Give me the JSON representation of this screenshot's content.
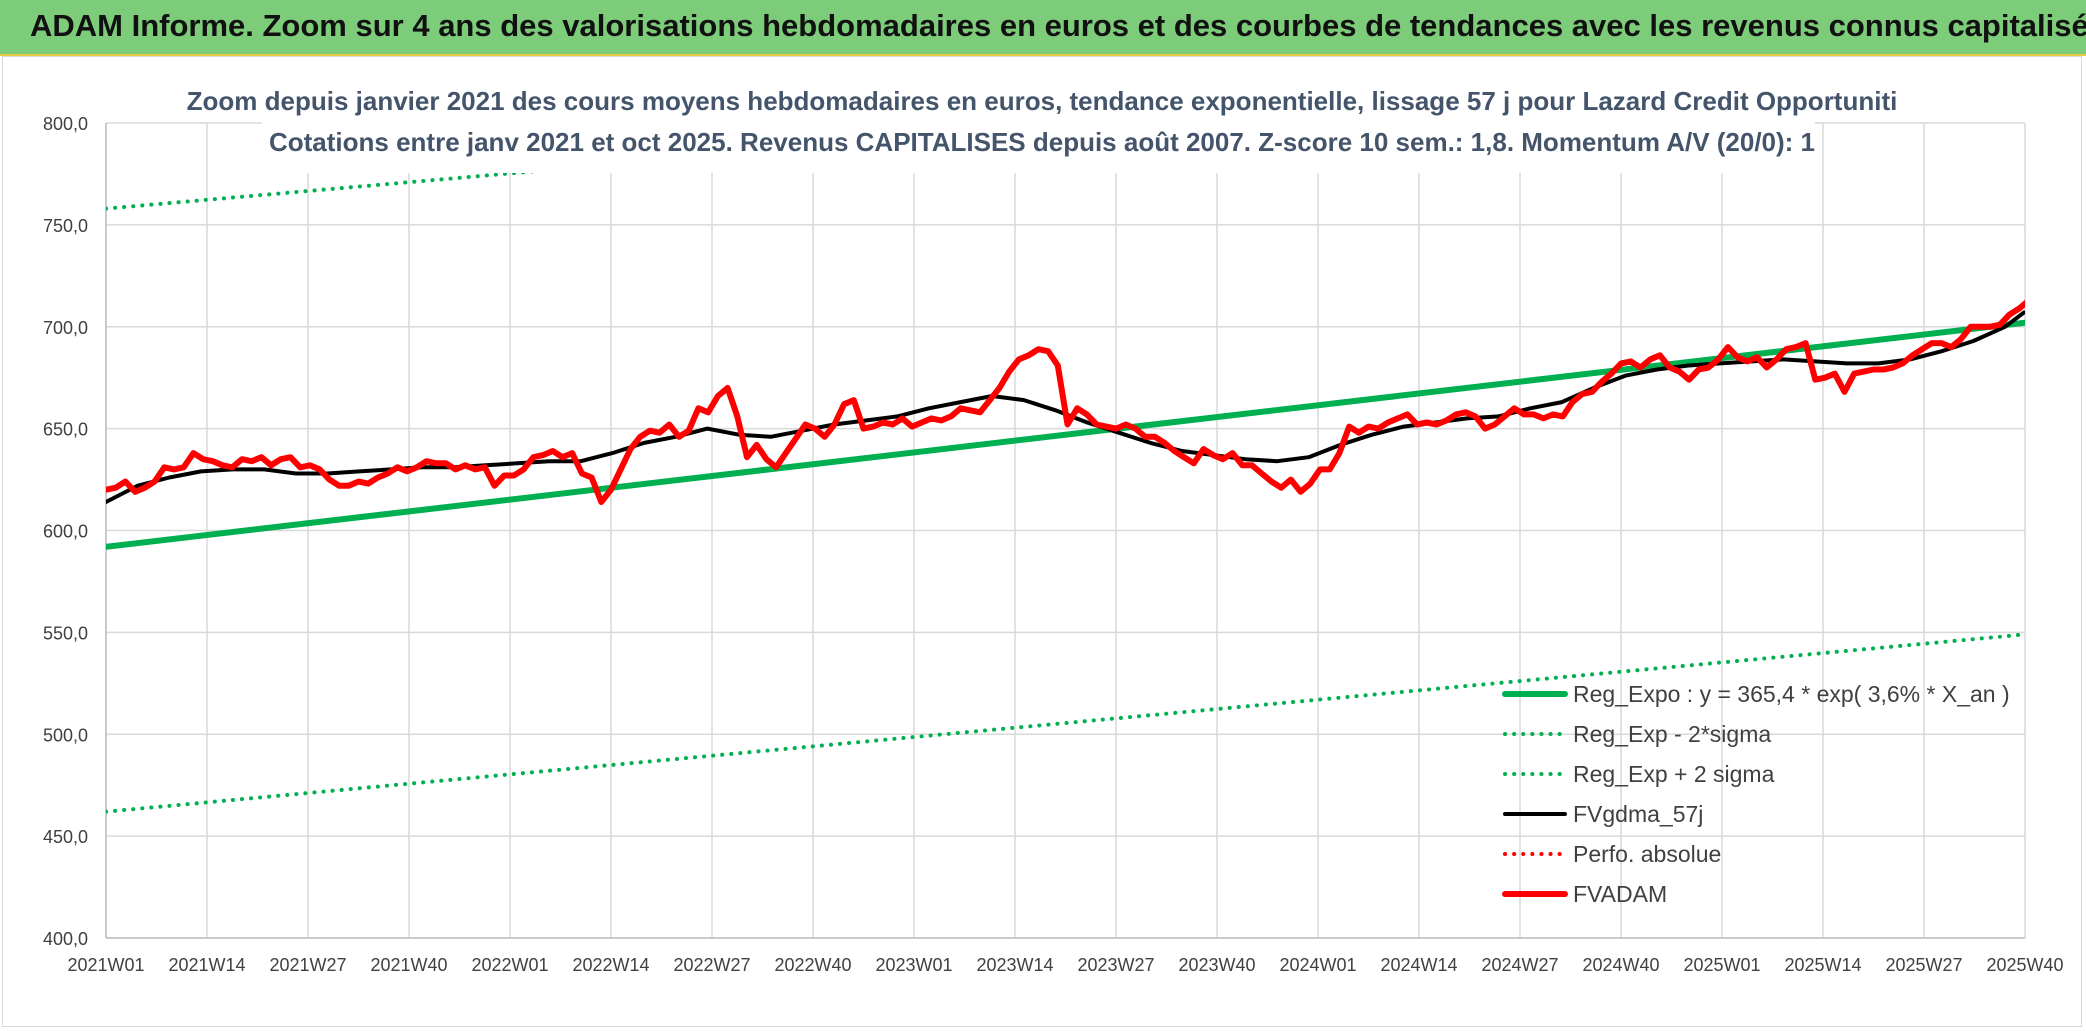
{
  "header": {
    "title": "ADAM Informe. Zoom sur 4 ans des valorisations hebdomadaires en euros et des courbes de tendances avec les revenus connus capitalisés"
  },
  "colors": {
    "banner": "#7dcc7a",
    "trend": "#00b050",
    "smooth": "#000000",
    "price": "#ff0000",
    "grid": "#d9d9d9",
    "axis_text": "#404040",
    "title_text": "#44546a"
  },
  "chart_data": {
    "type": "line",
    "title": "Zoom depuis janvier 2021 des cours moyens hebdomadaires en euros, tendance exponentielle, lissage 57 j pour Lazard Credit Opportuniti",
    "subtitle": "Cotations entre janv 2021 et oct 2025. Revenus CAPITALISES depuis août 2007. Z-score 10 sem.: 1,8. Momentum A/V (20/0): 1",
    "xlabel": "",
    "ylabel": "",
    "ylim": [
      400,
      800
    ],
    "y_ticks": [
      "800,0",
      "750,0",
      "700,0",
      "650,0",
      "600,0",
      "550,0",
      "500,0",
      "450,0",
      "400,0"
    ],
    "x_ticks": [
      "2021W01",
      "2021W14",
      "2021W27",
      "2021W40",
      "2022W01",
      "2022W14",
      "2022W27",
      "2022W40",
      "2023W01",
      "2023W14",
      "2023W27",
      "2023W40",
      "2024W01",
      "2024W14",
      "2024W27",
      "2024W40",
      "2025W01",
      "2025W14",
      "2025W27",
      "2025W40"
    ],
    "grid": true,
    "legend_position": "bottom-right",
    "series": [
      {
        "name": "Reg_Expo : y = 365,4 * exp( 3,6% *  X_an )",
        "style": "solid-thick",
        "color": "#00b050",
        "points": [
          [
            0,
            592
          ],
          [
            247,
            702
          ]
        ]
      },
      {
        "name": "Reg_Exp - 2*sigma",
        "style": "dotted",
        "color": "#00b050",
        "points": [
          [
            0,
            462
          ],
          [
            247,
            549
          ]
        ]
      },
      {
        "name": "Reg_Exp + 2 sigma",
        "style": "dotted",
        "color": "#00b050",
        "points": [
          [
            0,
            758
          ],
          [
            247,
            840
          ]
        ]
      },
      {
        "name": "FVgdma_57j",
        "style": "solid",
        "color": "#000000",
        "points": [
          [
            0,
            614
          ],
          [
            5,
            622
          ],
          [
            10,
            626
          ],
          [
            15,
            629
          ],
          [
            20,
            630
          ],
          [
            25,
            630
          ],
          [
            30,
            628
          ],
          [
            35,
            628
          ],
          [
            40,
            629
          ],
          [
            45,
            630
          ],
          [
            50,
            631
          ],
          [
            55,
            631
          ],
          [
            60,
            632
          ],
          [
            65,
            633
          ],
          [
            70,
            634
          ],
          [
            75,
            634
          ],
          [
            80,
            638
          ],
          [
            85,
            643
          ],
          [
            90,
            646
          ],
          [
            95,
            650
          ],
          [
            100,
            647
          ],
          [
            105,
            646
          ],
          [
            110,
            649
          ],
          [
            115,
            652
          ],
          [
            120,
            654
          ],
          [
            125,
            656
          ],
          [
            130,
            660
          ],
          [
            135,
            663
          ],
          [
            140,
            666
          ],
          [
            145,
            664
          ],
          [
            150,
            659
          ],
          [
            155,
            653
          ],
          [
            160,
            648
          ],
          [
            165,
            643
          ],
          [
            170,
            639
          ],
          [
            175,
            637
          ],
          [
            180,
            635
          ],
          [
            185,
            634
          ],
          [
            190,
            636
          ],
          [
            195,
            642
          ],
          [
            200,
            647
          ],
          [
            205,
            651
          ],
          [
            210,
            653
          ],
          [
            215,
            655
          ],
          [
            220,
            656
          ],
          [
            225,
            660
          ],
          [
            230,
            663
          ],
          [
            235,
            670
          ],
          [
            240,
            676
          ],
          [
            245,
            679
          ],
          [
            250,
            681
          ],
          [
            255,
            682
          ],
          [
            260,
            683
          ],
          [
            265,
            684
          ],
          [
            270,
            683
          ],
          [
            275,
            682
          ],
          [
            280,
            682
          ],
          [
            285,
            684
          ],
          [
            290,
            688
          ],
          [
            295,
            693
          ],
          [
            300,
            700
          ],
          [
            303,
            707
          ]
        ]
      },
      {
        "name": "Perfo. absolue",
        "style": "dotted",
        "color": "#ff0000",
        "points": []
      },
      {
        "name": "FVADAM",
        "style": "solid-thick",
        "color": "#ff0000",
        "points": [
          [
            0,
            620
          ],
          [
            2,
            621
          ],
          [
            4,
            624
          ],
          [
            6,
            619
          ],
          [
            8,
            621
          ],
          [
            10,
            624
          ],
          [
            12,
            631
          ],
          [
            14,
            630
          ],
          [
            16,
            631
          ],
          [
            18,
            638
          ],
          [
            20,
            635
          ],
          [
            22,
            634
          ],
          [
            24,
            632
          ],
          [
            26,
            631
          ],
          [
            28,
            635
          ],
          [
            30,
            634
          ],
          [
            32,
            636
          ],
          [
            34,
            632
          ],
          [
            36,
            635
          ],
          [
            38,
            636
          ],
          [
            40,
            631
          ],
          [
            42,
            632
          ],
          [
            44,
            630
          ],
          [
            46,
            625
          ],
          [
            48,
            622
          ],
          [
            50,
            622
          ],
          [
            52,
            624
          ],
          [
            54,
            623
          ],
          [
            56,
            626
          ],
          [
            58,
            628
          ],
          [
            60,
            631
          ],
          [
            62,
            629
          ],
          [
            64,
            631
          ],
          [
            66,
            634
          ],
          [
            68,
            633
          ],
          [
            70,
            633
          ],
          [
            72,
            630
          ],
          [
            74,
            632
          ],
          [
            76,
            630
          ],
          [
            78,
            631
          ],
          [
            80,
            622
          ],
          [
            82,
            627
          ],
          [
            84,
            627
          ],
          [
            86,
            630
          ],
          [
            88,
            636
          ],
          [
            90,
            637
          ],
          [
            92,
            639
          ],
          [
            94,
            636
          ],
          [
            96,
            638
          ],
          [
            98,
            628
          ],
          [
            100,
            626
          ],
          [
            102,
            614
          ],
          [
            104,
            620
          ],
          [
            106,
            630
          ],
          [
            108,
            640
          ],
          [
            110,
            646
          ],
          [
            112,
            649
          ],
          [
            114,
            648
          ],
          [
            116,
            652
          ],
          [
            118,
            646
          ],
          [
            120,
            649
          ],
          [
            122,
            660
          ],
          [
            124,
            658
          ],
          [
            126,
            666
          ],
          [
            128,
            670
          ],
          [
            130,
            656
          ],
          [
            132,
            636
          ],
          [
            134,
            642
          ],
          [
            136,
            635
          ],
          [
            138,
            631
          ],
          [
            140,
            638
          ],
          [
            142,
            645
          ],
          [
            144,
            652
          ],
          [
            146,
            650
          ],
          [
            148,
            646
          ],
          [
            150,
            652
          ],
          [
            152,
            662
          ],
          [
            154,
            664
          ],
          [
            156,
            650
          ],
          [
            158,
            651
          ],
          [
            160,
            653
          ],
          [
            162,
            652
          ],
          [
            164,
            655
          ],
          [
            166,
            651
          ],
          [
            168,
            653
          ],
          [
            170,
            655
          ],
          [
            172,
            654
          ],
          [
            174,
            656
          ],
          [
            176,
            660
          ],
          [
            178,
            659
          ],
          [
            180,
            658
          ],
          [
            182,
            664
          ],
          [
            184,
            670
          ],
          [
            186,
            678
          ],
          [
            188,
            684
          ],
          [
            190,
            686
          ],
          [
            192,
            689
          ],
          [
            194,
            688
          ],
          [
            196,
            681
          ],
          [
            198,
            652
          ],
          [
            200,
            660
          ],
          [
            202,
            657
          ],
          [
            204,
            652
          ],
          [
            206,
            651
          ],
          [
            208,
            650
          ],
          [
            210,
            652
          ],
          [
            212,
            650
          ],
          [
            214,
            646
          ],
          [
            216,
            646
          ],
          [
            218,
            643
          ],
          [
            220,
            639
          ],
          [
            222,
            636
          ],
          [
            224,
            633
          ],
          [
            226,
            640
          ],
          [
            228,
            637
          ],
          [
            230,
            635
          ],
          [
            232,
            638
          ],
          [
            234,
            632
          ],
          [
            236,
            632
          ],
          [
            238,
            628
          ],
          [
            240,
            624
          ],
          [
            242,
            621
          ],
          [
            244,
            625
          ],
          [
            246,
            619
          ],
          [
            248,
            623
          ],
          [
            250,
            630
          ],
          [
            252,
            630
          ],
          [
            254,
            638
          ],
          [
            256,
            651
          ],
          [
            258,
            648
          ],
          [
            260,
            651
          ],
          [
            262,
            650
          ],
          [
            264,
            653
          ],
          [
            266,
            655
          ],
          [
            268,
            657
          ],
          [
            270,
            652
          ],
          [
            272,
            653
          ],
          [
            274,
            652
          ],
          [
            276,
            654
          ],
          [
            278,
            657
          ],
          [
            280,
            658
          ],
          [
            282,
            656
          ],
          [
            284,
            650
          ],
          [
            286,
            652
          ],
          [
            288,
            656
          ],
          [
            290,
            660
          ],
          [
            292,
            657
          ],
          [
            294,
            657
          ],
          [
            296,
            655
          ],
          [
            298,
            657
          ],
          [
            300,
            656
          ],
          [
            302,
            663
          ],
          [
            304,
            667
          ],
          [
            306,
            668
          ],
          [
            308,
            673
          ],
          [
            310,
            677
          ],
          [
            312,
            682
          ],
          [
            314,
            683
          ],
          [
            316,
            680
          ],
          [
            318,
            684
          ],
          [
            320,
            686
          ],
          [
            322,
            680
          ],
          [
            324,
            678
          ],
          [
            326,
            674
          ],
          [
            328,
            679
          ],
          [
            330,
            680
          ],
          [
            332,
            684
          ],
          [
            334,
            690
          ],
          [
            336,
            685
          ],
          [
            338,
            683
          ],
          [
            340,
            685
          ],
          [
            342,
            680
          ],
          [
            344,
            684
          ],
          [
            346,
            689
          ],
          [
            348,
            690
          ],
          [
            350,
            692
          ],
          [
            352,
            674
          ],
          [
            354,
            675
          ],
          [
            356,
            677
          ],
          [
            358,
            668
          ],
          [
            360,
            677
          ],
          [
            362,
            678
          ],
          [
            364,
            679
          ],
          [
            366,
            679
          ],
          [
            368,
            680
          ],
          [
            370,
            682
          ],
          [
            372,
            686
          ],
          [
            374,
            689
          ],
          [
            376,
            692
          ],
          [
            378,
            692
          ],
          [
            380,
            690
          ],
          [
            382,
            694
          ],
          [
            384,
            700
          ],
          [
            386,
            700
          ],
          [
            388,
            700
          ],
          [
            390,
            701
          ],
          [
            392,
            706
          ],
          [
            394,
            709
          ],
          [
            396,
            713
          ]
        ]
      }
    ]
  }
}
